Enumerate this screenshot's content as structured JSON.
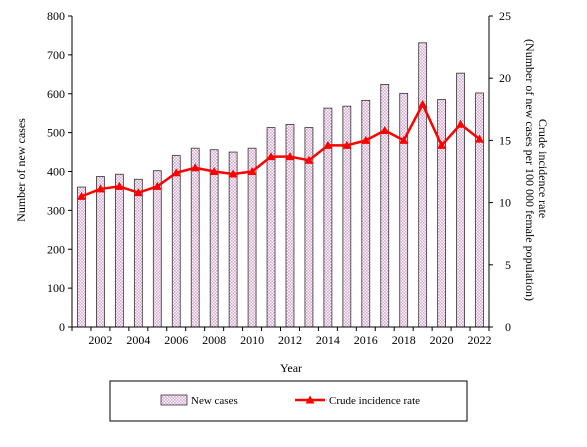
{
  "chart_data": {
    "type": "bar",
    "title": "",
    "xlabel": "Year",
    "ylabel": "Number of new cases",
    "ylabel_right": "Crude incidence rate\n(Number of new cases per 100 000 female population)",
    "x": [
      2001,
      2002,
      2003,
      2004,
      2005,
      2006,
      2007,
      2008,
      2009,
      2010,
      2011,
      2012,
      2013,
      2014,
      2015,
      2016,
      2017,
      2018,
      2019,
      2020,
      2021,
      2022
    ],
    "x_tick_labels": [
      "2002",
      "2004",
      "2006",
      "2008",
      "2010",
      "2012",
      "2014",
      "2016",
      "2018",
      "2020",
      "2022"
    ],
    "ylim": [
      0,
      800
    ],
    "y_ticks": [
      0,
      100,
      200,
      300,
      400,
      500,
      600,
      700,
      800
    ],
    "ylim_right": [
      0,
      25
    ],
    "y_ticks_right": [
      0,
      5,
      10,
      15,
      20,
      25
    ],
    "series": [
      {
        "name": "New cases",
        "type": "bar",
        "axis": "left",
        "values": [
          360,
          387,
          393,
          380,
          402,
          441,
          460,
          456,
          450,
          460,
          513,
          521,
          513,
          563,
          568,
          583,
          624,
          601,
          731,
          585,
          653,
          602
        ]
      },
      {
        "name": "Crude incidence rate",
        "type": "line",
        "axis": "right",
        "values": [
          10.5,
          11.1,
          11.3,
          10.8,
          11.3,
          12.4,
          12.8,
          12.5,
          12.3,
          12.5,
          13.7,
          13.7,
          13.4,
          14.6,
          14.6,
          15.0,
          15.8,
          15.0,
          17.9,
          14.6,
          16.3,
          15.1
        ]
      }
    ],
    "legend": [
      "New cases",
      "Crude incidence rate"
    ],
    "legend_position": "bottom",
    "grid": false,
    "colors": {
      "bar_pattern": "#d9a8d0",
      "bar_stroke": "#333333",
      "line": "#ff0000"
    }
  }
}
